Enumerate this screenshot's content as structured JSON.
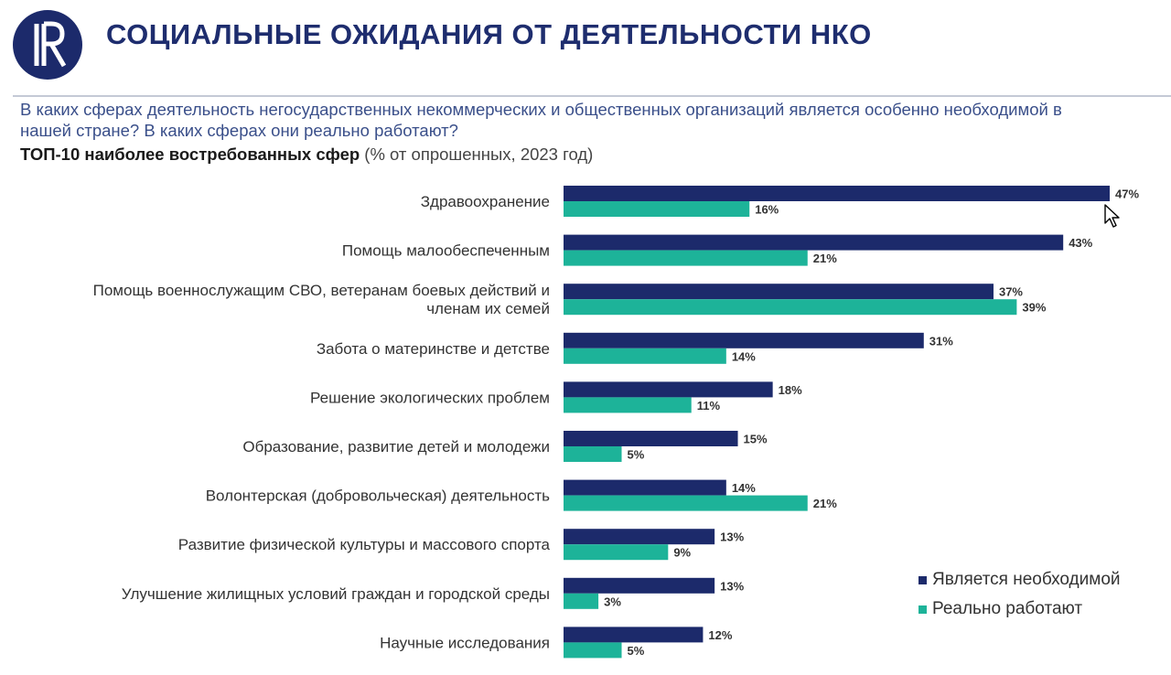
{
  "header": {
    "title": "СОЦИАЛЬНЫЕ ОЖИДАНИЯ ОТ ДЕЯТЕЛЬНОСТИ НКО",
    "question": "В каких сферах деятельность негосударственных некоммерческих и общественных организаций является особенно необходимой в нашей стране? В каких сферах они реально работают?",
    "subtitle_bold": "ТОП-10 наиболее востребованных сфер",
    "subtitle_rest": " (% от опрошенных, 2023 год)"
  },
  "colors": {
    "brand": "#1c2a6b",
    "needed": "#1c2a6b",
    "working": "#1db399"
  },
  "chart_data": {
    "type": "bar",
    "orientation": "horizontal",
    "title": "ТОП-10 наиболее востребованных сфер",
    "xlabel": "",
    "ylabel": "",
    "xlim": [
      0,
      50
    ],
    "grid": false,
    "legend_position": "bottom-right",
    "categories": [
      [
        "Здравоохранение"
      ],
      [
        "Помощь малообеспеченным"
      ],
      [
        "Помощь военнослужащим СВО, ветеранам боевых действий и",
        "членам их семей"
      ],
      [
        "Забота о материнстве и детстве"
      ],
      [
        "Решение экологических проблем"
      ],
      [
        "Образование, развитие детей и молодежи"
      ],
      [
        "Волонтерская (добровольческая) деятельность"
      ],
      [
        "Развитие физической культуры и массового спорта"
      ],
      [
        "Улучшение жилищных условий граждан и городской среды"
      ],
      [
        "Научные исследования"
      ]
    ],
    "series": [
      {
        "name": "Является необходимой",
        "values": [
          47,
          43,
          37,
          31,
          18,
          15,
          14,
          13,
          13,
          12
        ],
        "labels": [
          "47%",
          "43%",
          "37%",
          "31%",
          "18%",
          "15%",
          "14%",
          "13%",
          "13%",
          "12%"
        ]
      },
      {
        "name": "Реально работают",
        "values": [
          16,
          21,
          39,
          14,
          11,
          5,
          21,
          9,
          3,
          5
        ],
        "labels": [
          "16%",
          "21%",
          "39%",
          "14%",
          "11%",
          "5%",
          "21%",
          "9%",
          "3%",
          "5%"
        ]
      }
    ]
  }
}
